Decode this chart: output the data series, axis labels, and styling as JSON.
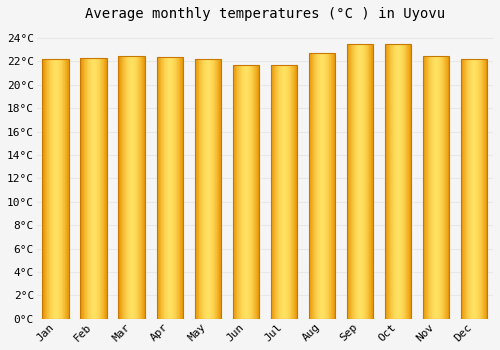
{
  "title": "Average monthly temperatures (°C ) in Uyovu",
  "months": [
    "Jan",
    "Feb",
    "Mar",
    "Apr",
    "May",
    "Jun",
    "Jul",
    "Aug",
    "Sep",
    "Oct",
    "Nov",
    "Dec"
  ],
  "values": [
    22.2,
    22.3,
    22.5,
    22.4,
    22.2,
    21.7,
    21.7,
    22.7,
    23.5,
    23.5,
    22.5,
    22.2
  ],
  "ylim": [
    0,
    25
  ],
  "yticks": [
    0,
    2,
    4,
    6,
    8,
    10,
    12,
    14,
    16,
    18,
    20,
    22,
    24
  ],
  "ytick_labels": [
    "0°C",
    "2°C",
    "4°C",
    "6°C",
    "8°C",
    "10°C",
    "12°C",
    "14°C",
    "16°C",
    "18°C",
    "20°C",
    "22°C",
    "24°C"
  ],
  "background_color": "#f5f5f5",
  "grid_color": "#e8e8e8",
  "title_fontsize": 10,
  "tick_fontsize": 8,
  "bar_width": 0.7,
  "bar_color_center": "#FFE060",
  "bar_color_edge": "#E89000",
  "bar_border_color": "#C87800"
}
